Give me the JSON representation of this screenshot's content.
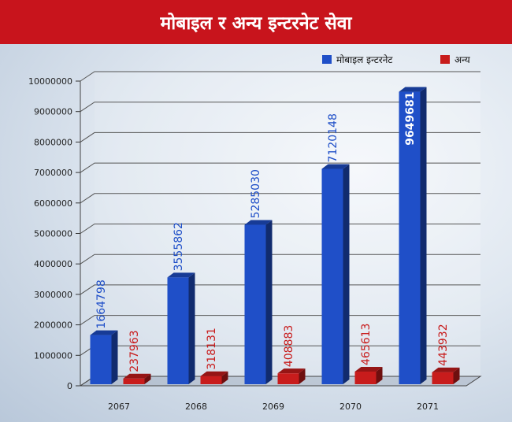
{
  "title": "मोबाइल र अन्य इन्टरनेट सेवा",
  "chart_data": {
    "type": "bar",
    "title": "मोबाइल र अन्य इन्टरनेट सेवा",
    "categories": [
      "2067",
      "2068",
      "2069",
      "2070",
      "2071"
    ],
    "series": [
      {
        "name": "मोबाइल इन्टरनेट",
        "values": [
          1664798,
          3555862,
          5285030,
          7120148,
          9649681
        ],
        "color": "#1f4fc8",
        "label_color": "#1f4fc8"
      },
      {
        "name": "अन्य",
        "values": [
          237963,
          318131,
          408883,
          465613,
          443932
        ],
        "color": "#c81c1c",
        "label_color": "#c81c1c"
      }
    ],
    "yticks": [
      "0",
      "1000000",
      "2000000",
      "3000000",
      "4000000",
      "5000000",
      "6000000",
      "7000000",
      "8000000",
      "9000000",
      "10000000"
    ],
    "ylim": [
      0,
      10000000
    ],
    "legend_position": "top-right",
    "grid": true
  }
}
